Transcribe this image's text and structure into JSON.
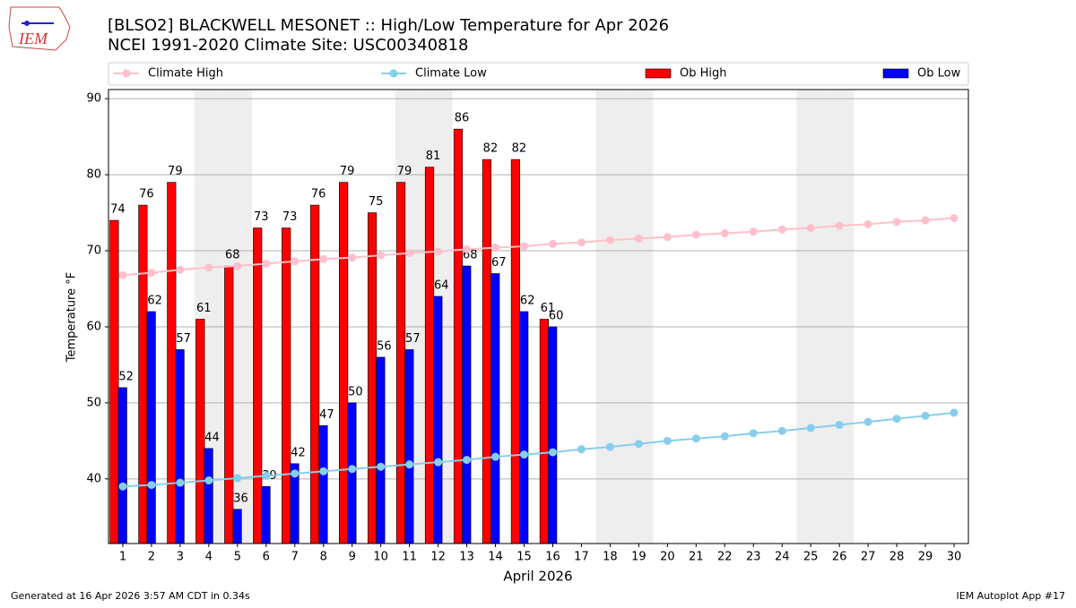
{
  "chart_data": {
    "type": "bar_line",
    "title": "[BLSO2] BLACKWELL MESONET :: High/Low Temperature for Apr 2026",
    "subtitle": "NCEI 1991-2020 Climate Site: USC00340818",
    "xlabel": "April 2026",
    "ylabel": "Temperature °F",
    "logo": "IEM",
    "footer_left": "Generated at 16 Apr 2026 3:57 AM CDT in 0.34s",
    "footer_right": "IEM Autoplot App #17",
    "x": [
      1,
      2,
      3,
      4,
      5,
      6,
      7,
      8,
      9,
      10,
      11,
      12,
      13,
      14,
      15,
      16,
      17,
      18,
      19,
      20,
      21,
      22,
      23,
      24,
      25,
      26,
      27,
      28,
      29,
      30
    ],
    "xlim": [
      0.5,
      30.5
    ],
    "xticks": [
      1,
      2,
      3,
      4,
      5,
      6,
      7,
      8,
      9,
      10,
      11,
      12,
      13,
      14,
      15,
      16,
      17,
      18,
      19,
      20,
      21,
      22,
      23,
      24,
      25,
      26,
      27,
      28,
      29,
      30
    ],
    "ylim": [
      31.5,
      91.2
    ],
    "yticks": [
      40,
      50,
      60,
      70,
      80,
      90
    ],
    "grid": true,
    "shaded_days": [
      4,
      5,
      11,
      12,
      18,
      19,
      25,
      26
    ],
    "series": [
      {
        "name": "Climate High",
        "kind": "line",
        "color": "#ffc0cb",
        "values": [
          66.8,
          67.1,
          67.5,
          67.8,
          68.0,
          68.3,
          68.6,
          68.9,
          69.1,
          69.4,
          69.7,
          69.9,
          70.2,
          70.4,
          70.6,
          70.9,
          71.1,
          71.4,
          71.6,
          71.8,
          72.1,
          72.3,
          72.5,
          72.8,
          73.0,
          73.3,
          73.5,
          73.8,
          74.0,
          74.3
        ]
      },
      {
        "name": "Climate Low",
        "kind": "line",
        "color": "#87ceeb",
        "values": [
          39.0,
          39.2,
          39.5,
          39.8,
          40.1,
          40.4,
          40.7,
          41.0,
          41.3,
          41.6,
          41.9,
          42.2,
          42.5,
          42.9,
          43.2,
          43.5,
          43.9,
          44.2,
          44.6,
          45.0,
          45.3,
          45.6,
          46.0,
          46.3,
          46.7,
          47.1,
          47.5,
          47.9,
          48.3,
          48.7
        ]
      },
      {
        "name": "Ob High",
        "kind": "bar",
        "color": "#ff0000",
        "values": [
          74,
          76,
          79,
          61,
          68,
          73,
          73,
          76,
          79,
          75,
          79,
          81,
          86,
          82,
          82,
          61,
          null,
          null,
          null,
          null,
          null,
          null,
          null,
          null,
          null,
          null,
          null,
          null,
          null,
          null
        ]
      },
      {
        "name": "Ob Low",
        "kind": "bar",
        "color": "#0000ff",
        "values": [
          52,
          62,
          57,
          44,
          36,
          39,
          42,
          47,
          50,
          56,
          57,
          64,
          68,
          67,
          62,
          60,
          null,
          null,
          null,
          null,
          null,
          null,
          null,
          null,
          null,
          null,
          null,
          null,
          null,
          null
        ]
      }
    ]
  }
}
